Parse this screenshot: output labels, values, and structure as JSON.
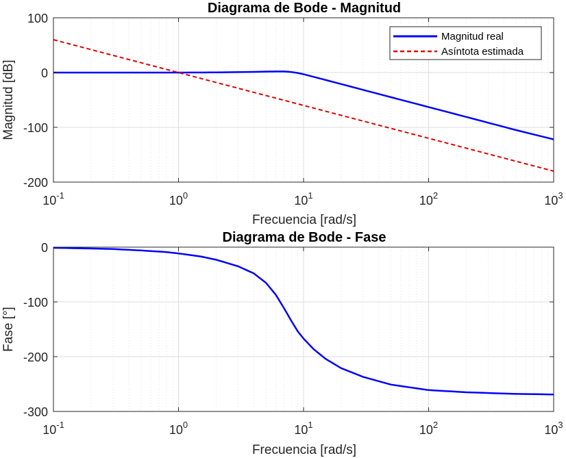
{
  "figure": {
    "background": "#ffffff",
    "grid_major_color": "#dcdcdc",
    "grid_minor_color": "#e2e2e2"
  },
  "chart_data": [
    {
      "type": "line",
      "title": "Diagrama de Bode - Magnitud",
      "xlabel": "Frecuencia [rad/s]",
      "ylabel": "Magnitud [dB]",
      "xscale": "log",
      "xlim": [
        0.1,
        1000
      ],
      "ylim": [
        -200,
        100
      ],
      "x_ticks": [
        0.1,
        1,
        10,
        100,
        1000
      ],
      "x_tick_labels": [
        {
          "base": "10",
          "exp": "-1"
        },
        {
          "base": "10",
          "exp": "0"
        },
        {
          "base": "10",
          "exp": "1"
        },
        {
          "base": "10",
          "exp": "2"
        },
        {
          "base": "10",
          "exp": "3"
        }
      ],
      "y_ticks": [
        -200,
        -100,
        0,
        100
      ],
      "y_tick_labels": [
        "-200",
        "-100",
        "0",
        "100"
      ],
      "grid": true,
      "minor_grid": true,
      "legend": "top-right",
      "series": [
        {
          "name": "Magnitud real",
          "color": "#0000ff",
          "style": "solid",
          "x": [
            0.1,
            0.5,
            1,
            2,
            4,
            6,
            7,
            8,
            9,
            10,
            20,
            50,
            100,
            200,
            500,
            1000
          ],
          "y": [
            0,
            0,
            0,
            0.3,
            1.2,
            2.1,
            2.0,
            1.0,
            -0.8,
            -3,
            -21,
            -45,
            -63,
            -81,
            -105,
            -122
          ]
        },
        {
          "name": "Asíntota estimada",
          "color": "#e00000",
          "style": "dashed",
          "x": [
            0.1,
            1000
          ],
          "y": [
            60,
            -180
          ]
        }
      ]
    },
    {
      "type": "line",
      "title": "Diagrama de Bode - Fase",
      "xlabel": "Frecuencia [rad/s]",
      "ylabel": "Fase [°]",
      "xscale": "log",
      "xlim": [
        0.1,
        1000
      ],
      "ylim": [
        -300,
        0
      ],
      "x_ticks": [
        0.1,
        1,
        10,
        100,
        1000
      ],
      "x_tick_labels": [
        {
          "base": "10",
          "exp": "-1"
        },
        {
          "base": "10",
          "exp": "0"
        },
        {
          "base": "10",
          "exp": "1"
        },
        {
          "base": "10",
          "exp": "2"
        },
        {
          "base": "10",
          "exp": "3"
        }
      ],
      "y_ticks": [
        -300,
        -200,
        -100,
        0
      ],
      "y_tick_labels": [
        "-300",
        "-200",
        "-100",
        "0"
      ],
      "grid": true,
      "minor_grid": true,
      "series": [
        {
          "color": "#0000ff",
          "style": "solid",
          "x": [
            0.1,
            0.2,
            0.3,
            0.5,
            0.8,
            1,
            1.5,
            2,
            3,
            4,
            5,
            6,
            7,
            8,
            9,
            10,
            12,
            15,
            20,
            30,
            50,
            100,
            200,
            500,
            1000
          ],
          "y": [
            -1.2,
            -2.5,
            -3.5,
            -6,
            -9,
            -11.5,
            -17,
            -23,
            -35,
            -48,
            -65,
            -87,
            -112,
            -135,
            -154,
            -167,
            -186,
            -204,
            -221,
            -237,
            -251,
            -261,
            -265,
            -268,
            -269
          ]
        }
      ]
    }
  ]
}
